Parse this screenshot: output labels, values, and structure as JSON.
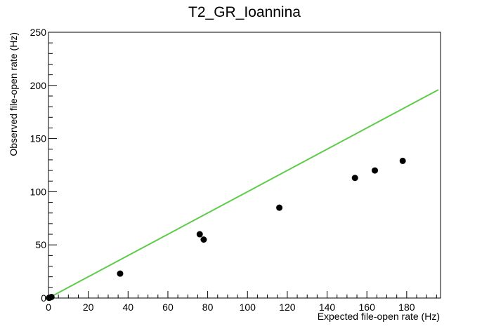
{
  "chart_data": {
    "type": "scatter",
    "title": "T2_GR_Ioannina",
    "xlabel": "Expected file-open rate (Hz)",
    "ylabel": "Observed file-open rate (Hz)",
    "xlim": [
      0,
      197
    ],
    "ylim": [
      0,
      250
    ],
    "x_ticks": [
      0,
      20,
      40,
      60,
      80,
      100,
      120,
      140,
      160,
      180
    ],
    "y_ticks": [
      0,
      50,
      100,
      150,
      200,
      250
    ],
    "grid": false,
    "legend": "none",
    "series": [
      {
        "type": "scatter",
        "color": "#000000",
        "points": [
          {
            "x": 0.3,
            "y": 0.2
          },
          {
            "x": 0.8,
            "y": 0.5
          },
          {
            "x": 1.5,
            "y": 1.0
          },
          {
            "x": 36,
            "y": 23
          },
          {
            "x": 76,
            "y": 60
          },
          {
            "x": 78,
            "y": 55
          },
          {
            "x": 116,
            "y": 85
          },
          {
            "x": 154,
            "y": 113
          },
          {
            "x": 164,
            "y": 120
          },
          {
            "x": 178,
            "y": 129
          }
        ]
      },
      {
        "type": "line",
        "color": "#5ecb4a",
        "points": [
          {
            "x": 0,
            "y": 0
          },
          {
            "x": 196,
            "y": 196
          }
        ]
      }
    ]
  }
}
